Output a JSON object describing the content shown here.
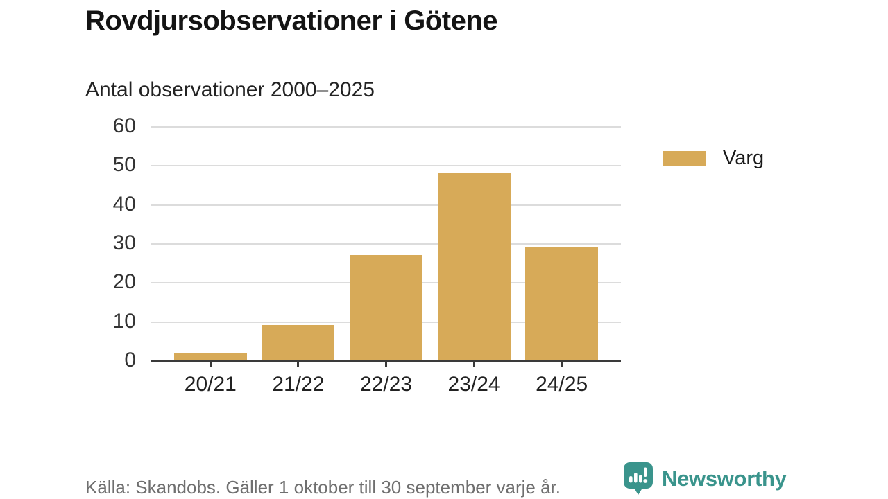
{
  "header": {
    "title": "Rovdjursobservationer i Götene",
    "subtitle": "Antal observationer 2000–2025"
  },
  "legend": {
    "position": "right",
    "items": [
      {
        "label": "Varg",
        "color": "#d7aa58"
      }
    ]
  },
  "footer": {
    "source": "Källa: Skandobs. Gäller 1 oktober till 30 september varje år.",
    "brand": "Newsworthy",
    "logo_icon": "newsworthy-speech-bubble-chart-icon"
  },
  "colors": {
    "bar": "#d7aa58",
    "axis": "#3a3a3a",
    "gridline": "#dcdcdc",
    "brand_teal": "#3a948c",
    "title_text": "#141414",
    "muted_text": "#6f6f6f"
  },
  "chart_data": {
    "type": "bar",
    "title": "Rovdjursobservationer i Götene",
    "subtitle": "Antal observationer 2000–2025",
    "categories": [
      "20/21",
      "21/22",
      "22/23",
      "23/24",
      "24/25"
    ],
    "series": [
      {
        "name": "Varg",
        "values": [
          2,
          9,
          27,
          48,
          29
        ]
      }
    ],
    "xlabel": "",
    "ylabel": "",
    "ylim": [
      0,
      60
    ],
    "yticks": [
      0,
      10,
      20,
      30,
      40,
      50,
      60
    ],
    "grid": true,
    "legend_position": "right",
    "bar_color": "#d7aa58"
  }
}
